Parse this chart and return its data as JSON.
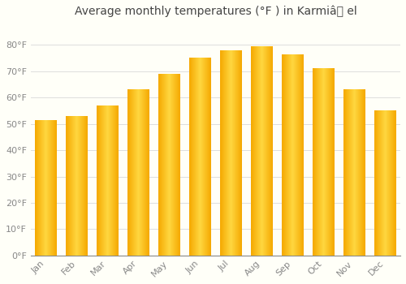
{
  "title": "Average monthly temperatures (°F ) in Karmiâ el",
  "months": [
    "Jan",
    "Feb",
    "Mar",
    "Apr",
    "May",
    "Jun",
    "Jul",
    "Aug",
    "Sep",
    "Oct",
    "Nov",
    "Dec"
  ],
  "values": [
    51.5,
    53.0,
    57.0,
    63.0,
    69.0,
    75.0,
    78.0,
    79.5,
    76.5,
    71.0,
    63.0,
    55.0
  ],
  "bar_color_edge": "#F5A800",
  "bar_color_center": "#FFD740",
  "yticks": [
    0,
    10,
    20,
    30,
    40,
    50,
    60,
    70,
    80
  ],
  "ytick_labels": [
    "0°F",
    "10°F",
    "20°F",
    "30°F",
    "40°F",
    "50°F",
    "60°F",
    "70°F",
    "80°F"
  ],
  "ylim": [
    0,
    88
  ],
  "background_color": "#FFFFF8",
  "grid_color": "#DDDDDD",
  "title_fontsize": 10,
  "tick_fontsize": 8,
  "bar_width": 0.7
}
